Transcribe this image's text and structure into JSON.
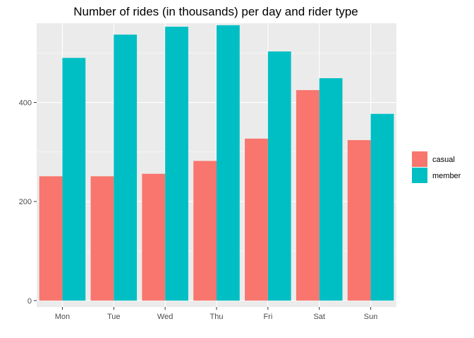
{
  "chart_data": {
    "type": "bar",
    "title": "Number of rides (in thousands) per day and rider type",
    "xlabel": "",
    "ylabel": "",
    "categories": [
      "Mon",
      "Tue",
      "Wed",
      "Thu",
      "Fri",
      "Sat",
      "Sun"
    ],
    "series": [
      {
        "name": "casual",
        "color": "#F8766D",
        "values": [
          251,
          251,
          256,
          282,
          327,
          425,
          324
        ]
      },
      {
        "name": "member",
        "color": "#00BFC4",
        "values": [
          490,
          537,
          553,
          556,
          503,
          449,
          377
        ]
      }
    ],
    "yticks": [
      0,
      200,
      400
    ],
    "ylim": [
      -13,
      560
    ],
    "grid": true,
    "legend_position": "right",
    "panel_background": "#EBEBEB"
  }
}
